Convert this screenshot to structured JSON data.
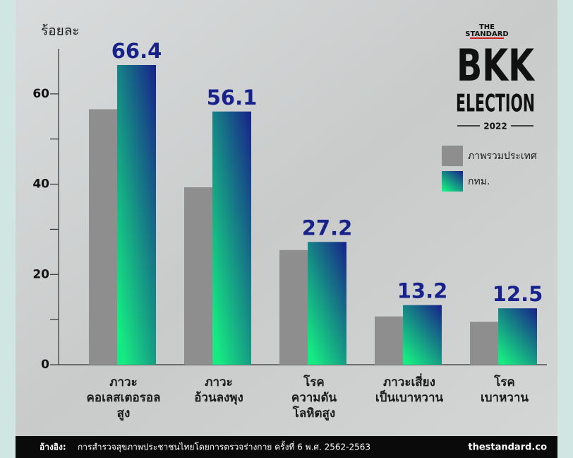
{
  "chart_data": {
    "type": "bar",
    "y_label": "ร้อยละ",
    "categories": [
      [
        "ภาวะ",
        "คอเลสเตอรอล",
        "สูง"
      ],
      [
        "ภาวะ",
        "อ้วนลงพุง"
      ],
      [
        "โรค",
        "ความดัน",
        "โลหิตสูง"
      ],
      [
        "ภาวะเสี่ยง",
        "เป็นเบาหวาน"
      ],
      [
        "โรค",
        "เบาหวาน"
      ]
    ],
    "series": [
      {
        "name": "ภาพรวมประเทศ",
        "color": "#8e8e8e",
        "values": [
          56.6,
          39.3,
          25.4,
          10.7,
          9.5
        ]
      },
      {
        "name": "กทม.",
        "color": [
          "#17228a",
          "#16ea82"
        ],
        "values": [
          66.4,
          56.1,
          27.2,
          13.2,
          12.5
        ]
      }
    ],
    "ylim": [
      0,
      70
    ],
    "yticks": [
      0,
      20,
      40,
      60
    ],
    "minor_yticks": [
      10,
      30,
      50
    ]
  },
  "logo": {
    "publisher": [
      "THE",
      "STANDARD"
    ],
    "title": [
      "BKK",
      "ELECTION"
    ],
    "year": "2022"
  },
  "footer": {
    "source_label": "อ้างอิง:",
    "source": "การสำรวจสุขภาพประชาชนไทยโดยการตรวจร่างกาย ครั้งที่ 6 พ.ศ. 2562-2563",
    "site": "thestandard.co"
  }
}
